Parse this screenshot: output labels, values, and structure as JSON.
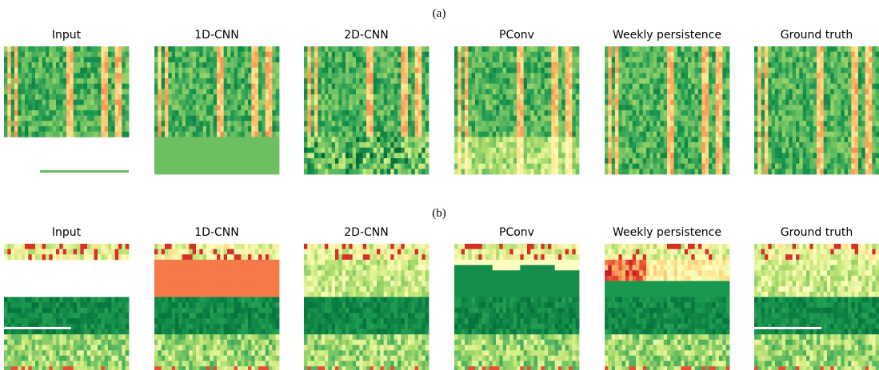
{
  "row_a": {
    "label": "(a)",
    "panels": [
      "Input",
      "1D-CNN",
      "2D-CNN",
      "PConv",
      "Weekly persistence",
      "Ground truth"
    ]
  },
  "row_b": {
    "label": "(b)",
    "panels": [
      "Input",
      "1D-CNN",
      "2D-CNN",
      "PConv",
      "Weekly persistence",
      "Ground truth"
    ]
  }
}
